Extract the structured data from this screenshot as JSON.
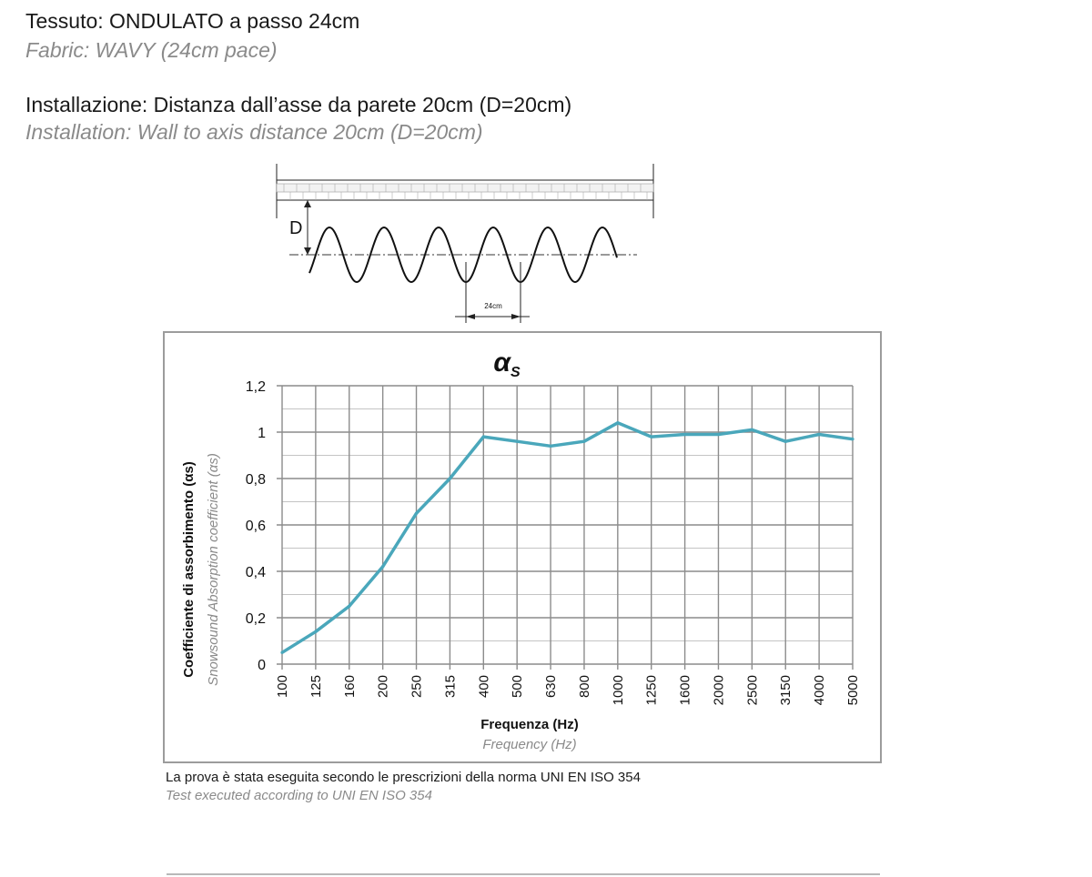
{
  "header": {
    "fabric_it": "Tessuto: ONDULATO a passo 24cm",
    "fabric_en": "Fabric: WAVY (24cm pace)",
    "install_it": "Installazione: Distanza dall’asse da parete 20cm (D=20cm)",
    "install_en": "Installation: Wall to axis distance 20cm (D=20cm)"
  },
  "diagram": {
    "d_label": "D",
    "pace_label": "24cm"
  },
  "chart_data": {
    "type": "line",
    "title": "αs",
    "title_main": "α",
    "title_sub": "S",
    "xlabel": "Frequenza (Hz)",
    "xlabel_en": "Frequency (Hz)",
    "ylabel": "Coefficiente di assorbimento (αs)",
    "ylabel_en": "Snowsound Absorption coefficient (αs)",
    "categories": [
      "100",
      "125",
      "160",
      "200",
      "250",
      "315",
      "400",
      "500",
      "630",
      "800",
      "1000",
      "1250",
      "1600",
      "2000",
      "2500",
      "3150",
      "4000",
      "5000"
    ],
    "values": [
      0.05,
      0.14,
      0.25,
      0.42,
      0.65,
      0.8,
      0.98,
      0.96,
      0.94,
      0.96,
      1.04,
      0.98,
      0.99,
      0.99,
      1.01,
      0.96,
      0.99,
      0.97
    ],
    "ylim": [
      0,
      1.2
    ],
    "yticks": [
      "0",
      "0,2",
      "0,4",
      "0,6",
      "0,8",
      "1",
      "1,2"
    ],
    "grid": true,
    "line_color": "#4aa7bb"
  },
  "footer": {
    "note_it": "La prova è stata eseguita secondo le prescrizioni della norma UNI EN ISO 354",
    "note_en": "Test executed according  to UNI EN ISO 354"
  }
}
